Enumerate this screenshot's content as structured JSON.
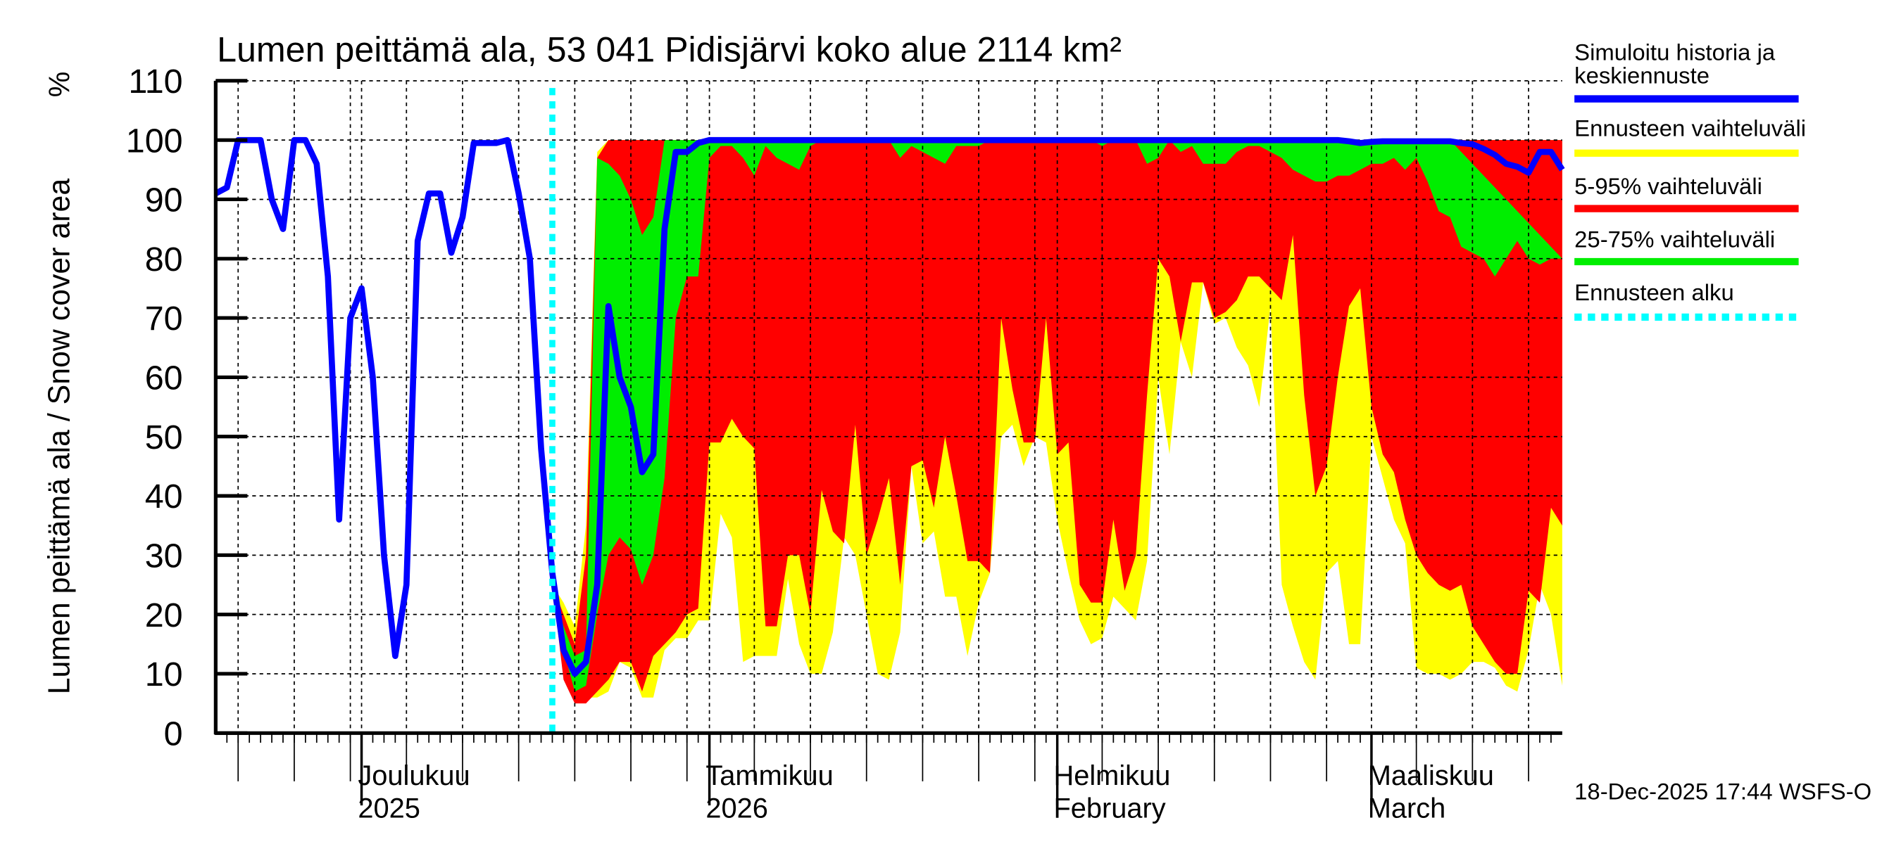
{
  "chart_data": {
    "type": "area",
    "title": "Lumen peittämä ala, 53 041 Pidisjärvi koko alue 2114 km²",
    "ylabel": "Lumen peittämä ala / Snow cover area",
    "yunit": "%",
    "ylim": [
      0,
      110
    ],
    "yticks": [
      0,
      10,
      20,
      30,
      40,
      50,
      60,
      70,
      80,
      90,
      100,
      110
    ],
    "grid": true,
    "x_start_date": "2025-11-18",
    "x_days": 120,
    "forecast_start_day": 30,
    "month_labels": [
      {
        "line1": "Joulukuu",
        "line2": "2025",
        "day": 13
      },
      {
        "line1": "Tammikuu",
        "line2": "2026",
        "day": 44
      },
      {
        "line1": "Helmikuu",
        "line2": "February",
        "day": 75
      },
      {
        "line1": "Maaliskuu",
        "line2": "March",
        "day": 103
      }
    ],
    "history": {
      "name": "Simuloitu historia ja keskiennuste",
      "start_day": 0,
      "values": [
        91,
        92,
        100,
        100,
        100,
        90,
        85,
        100,
        100,
        96,
        77,
        36,
        70,
        75,
        60,
        30,
        13,
        25,
        83,
        91,
        91,
        81,
        87,
        99.5,
        99.5,
        99.5,
        100,
        91,
        80,
        48,
        27
      ]
    },
    "forecast": {
      "start_day": 30,
      "median": [
        27,
        14,
        10,
        12,
        25,
        72,
        60,
        55,
        44,
        47,
        85,
        98,
        98,
        99.5,
        100,
        100,
        100,
        100,
        100,
        100,
        100,
        100,
        100,
        100,
        100,
        100,
        100,
        100,
        100,
        100,
        100,
        100,
        100,
        100,
        100,
        100,
        100,
        100,
        100,
        100,
        100,
        100,
        100,
        100,
        100,
        100,
        100,
        100,
        100,
        100,
        100,
        100,
        100,
        100,
        100,
        100,
        100,
        100,
        100,
        100,
        100,
        100,
        100,
        100,
        100,
        100,
        100,
        100,
        100,
        100,
        100,
        99.8,
        99.5,
        99.7,
        99.8,
        99.8,
        99.8,
        99.8,
        99.8,
        99.8,
        99.8,
        99.5,
        99.3,
        98.5,
        97.5,
        96,
        95.5,
        94.5,
        98,
        98,
        95
      ],
      "min": [
        25,
        17,
        6,
        6,
        6,
        7,
        12,
        11,
        6,
        6,
        14,
        16,
        16,
        19,
        19,
        37,
        33,
        12,
        13,
        13,
        13,
        26,
        15,
        10,
        10,
        17,
        33,
        30,
        20,
        10,
        9,
        17,
        45,
        32,
        34,
        23,
        23,
        13,
        22,
        27,
        50,
        52,
        45,
        50,
        49,
        36,
        27,
        19,
        15,
        16,
        23,
        21,
        19,
        29,
        60,
        47,
        66,
        60,
        76,
        69,
        70,
        65,
        62,
        55,
        72,
        25,
        18,
        12,
        9,
        27,
        29,
        15,
        15,
        50,
        43,
        36,
        32,
        11,
        10,
        10,
        9,
        10,
        12,
        12,
        11,
        8,
        7,
        14,
        25,
        20,
        8
      ],
      "p5": [
        25,
        9,
        5,
        5,
        7,
        9,
        12,
        12,
        7,
        13,
        15,
        17,
        20,
        21,
        49,
        49,
        53,
        50,
        48,
        18,
        18,
        30,
        30,
        20,
        41,
        34,
        32,
        52,
        30,
        36,
        43,
        25,
        45,
        46,
        38,
        50,
        40,
        29,
        29,
        27,
        70,
        58,
        49,
        49,
        70,
        47,
        49,
        25,
        22,
        22,
        36,
        24,
        30,
        57,
        80,
        77,
        66,
        76,
        76,
        70,
        71,
        73,
        77,
        77,
        75,
        73,
        84,
        57,
        40,
        45,
        60,
        72,
        75,
        55,
        47,
        44,
        36,
        30,
        27,
        25,
        24,
        25,
        18,
        15,
        12,
        10,
        10,
        24,
        22,
        38,
        35
      ],
      "p25": [
        25,
        14,
        7,
        8,
        20,
        30,
        33,
        31,
        25,
        30,
        43,
        70,
        77,
        77,
        97,
        99,
        99,
        97,
        94,
        99,
        97,
        96,
        95,
        99,
        100,
        100,
        100,
        100,
        100,
        100,
        100,
        97,
        99,
        98,
        97,
        96,
        99,
        99,
        99,
        100,
        100,
        100,
        100,
        100,
        100,
        100,
        100,
        100,
        100,
        99,
        100,
        100,
        100,
        96,
        97,
        100,
        98,
        99,
        96,
        96,
        96,
        98,
        99,
        99,
        98,
        97,
        95,
        94,
        93,
        93,
        94,
        94,
        95,
        96,
        96,
        97,
        95,
        97,
        93,
        88,
        87,
        82,
        81,
        80,
        77,
        80,
        83,
        80,
        79,
        80,
        80
      ],
      "p75": [
        25,
        18,
        13,
        14,
        97,
        96,
        94,
        90,
        84,
        87,
        100,
        100,
        100,
        100,
        100,
        100,
        100,
        100,
        100,
        100,
        100,
        100,
        100,
        100,
        100,
        100,
        100,
        100,
        100,
        100,
        100,
        100,
        100,
        100,
        100,
        100,
        100,
        100,
        100,
        100,
        100,
        100,
        100,
        100,
        100,
        100,
        100,
        100,
        100,
        100,
        100,
        100,
        100,
        100,
        100,
        100,
        100,
        100,
        100,
        100,
        100,
        100,
        100,
        100,
        100,
        100,
        100,
        100,
        100,
        100,
        100,
        100,
        100,
        100,
        100,
        100,
        100,
        100,
        100,
        100,
        100
      ],
      "p95": [
        25,
        20,
        15,
        30,
        97,
        100,
        100,
        100,
        100,
        100,
        100,
        100,
        100,
        100,
        100,
        100,
        100,
        100,
        100,
        100,
        100,
        100,
        100,
        100,
        100,
        100,
        100,
        100,
        100,
        100,
        100,
        100,
        100,
        100,
        100,
        100,
        100,
        100,
        100,
        100,
        100,
        100,
        100,
        100,
        100,
        100,
        100,
        100,
        100,
        100,
        100,
        100,
        100,
        100,
        100,
        100,
        100,
        100,
        100,
        100,
        100,
        100,
        100,
        100,
        100,
        100,
        100,
        100,
        100,
        100,
        100,
        100,
        100,
        100,
        100,
        100,
        100,
        100,
        100,
        100,
        100,
        100,
        100,
        100,
        100,
        100,
        100,
        100,
        100,
        100,
        100
      ],
      "max": [
        25,
        22,
        18,
        35,
        98,
        100,
        100,
        100,
        100,
        100,
        100,
        100,
        100,
        100,
        100,
        100,
        100,
        100,
        100,
        100,
        100,
        100,
        100,
        100,
        100,
        100,
        100,
        100,
        100,
        100,
        100,
        100,
        100,
        100,
        100,
        100,
        100,
        100,
        100,
        100,
        100,
        100,
        100,
        100,
        100,
        100,
        100,
        100,
        100,
        100,
        100,
        100,
        100,
        100,
        100,
        100,
        100,
        100,
        100,
        100,
        100,
        100,
        100,
        100,
        100,
        100,
        100,
        100,
        100,
        100,
        100,
        100,
        100,
        100,
        100,
        100,
        100,
        100,
        100,
        100,
        100,
        100,
        100,
        100,
        100,
        100,
        100,
        100,
        100,
        100,
        100
      ]
    },
    "legend": {
      "placement": "right",
      "items": [
        {
          "label1": "Simuloitu historia ja",
          "label2": "keskiennuste",
          "color": "#0000ff",
          "style": "line"
        },
        {
          "label1": "Ennusteen vaihteluväli",
          "color": "#ffff00",
          "style": "band"
        },
        {
          "label1": "5-95% vaihteluväli",
          "color": "#ff0000",
          "style": "band"
        },
        {
          "label1": "25-75% vaihteluväli",
          "color": "#00ee00",
          "style": "band"
        },
        {
          "label1": "Ennusteen alku",
          "color": "#00ffff",
          "style": "dotted"
        }
      ]
    },
    "footer": "18-Dec-2025 17:44 WSFS-O"
  }
}
